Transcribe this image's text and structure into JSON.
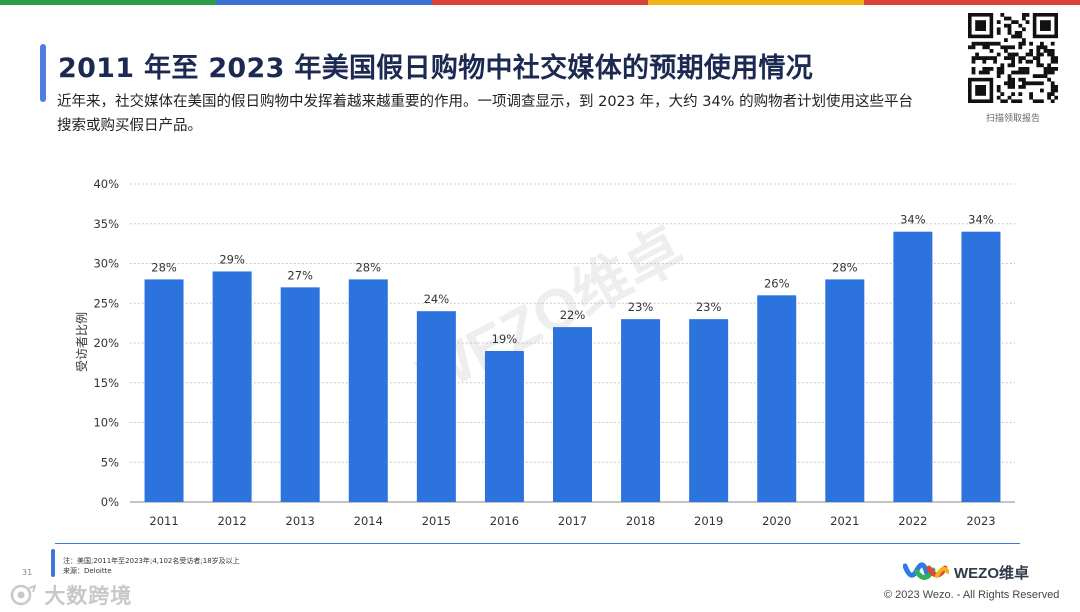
{
  "page": {
    "title": "2011 年至 2023 年美国假日购物中社交媒体的预期使用情况",
    "subtitle": "近年来，社交媒体在美国的假日购物中发挥着越来越重要的作用。一项调查显示，到 2023 年，大约 34% 的购物者计划使用这些平台搜索或购买假日产品。",
    "qr_caption": "扫描领取报告",
    "note": "注：美国;2011年至2023年;4,102名受访者;18岁及以上",
    "source": "来源：Deloitte",
    "page_number": "31",
    "watermark_text": "大数跨境",
    "brand_name": "WEZO维卓",
    "copyright": "© 2023 Wezo. - All Rights Reserved",
    "chart_watermark": "WEZO维卓"
  },
  "colors": {
    "bar": "#2c73de",
    "stripe": [
      "#2d9c4a",
      "#3b6fd1",
      "#d8433a",
      "#f1b51b",
      "#d8433a"
    ],
    "title": "#1c2a52",
    "accent": "#4f7fe0"
  },
  "chart_data": {
    "type": "bar",
    "categories": [
      "2011",
      "2012",
      "2013",
      "2014",
      "2015",
      "2016",
      "2017",
      "2018",
      "2019",
      "2020",
      "2021",
      "2022",
      "2023"
    ],
    "values": [
      28,
      29,
      27,
      28,
      24,
      19,
      22,
      23,
      23,
      26,
      28,
      34,
      34
    ],
    "value_labels": [
      "28%",
      "29%",
      "27%",
      "28%",
      "24%",
      "19%",
      "22%",
      "23%",
      "23%",
      "26%",
      "28%",
      "34%",
      "34%"
    ],
    "ylabel": "受访者比例",
    "xlabel": "",
    "ylim": [
      0,
      40
    ],
    "yticks": [
      "0%",
      "5%",
      "10%",
      "15%",
      "20%",
      "25%",
      "30%",
      "35%",
      "40%"
    ],
    "grid": "horizontal dotted",
    "legend": "none"
  }
}
